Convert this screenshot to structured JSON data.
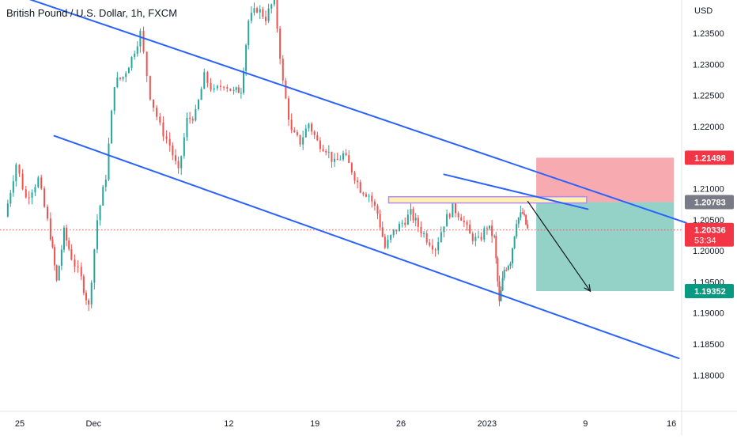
{
  "header": {
    "title": "British Pound / U.S. Dollar, 1h, FXCM",
    "currency": "USD"
  },
  "colors": {
    "trendline": "#2962ff",
    "candle_up": "#26a69a",
    "candle_down": "#ef5350",
    "stop_zone": "#f7a5ac",
    "target_zone": "#8ed0c4",
    "highlight_fill": "#fff2b0",
    "highlight_stroke": "#b388ff",
    "current_price_line": "#ef5350",
    "badge_stop": "#f23645",
    "badge_entry": "#787b86",
    "badge_current": "#f23645",
    "badge_target": "#089981"
  },
  "chart_data": {
    "type": "candlestick",
    "title": "British Pound / U.S. Dollar, 1h, FXCM",
    "y_unit": "USD",
    "ylim": [
      1.17725,
      1.24165
    ],
    "x_ticks": [
      {
        "label": "25",
        "day": 0
      },
      {
        "label": "Dec",
        "day": 6
      },
      {
        "label": "12",
        "day": 17
      },
      {
        "label": "19",
        "day": 24
      },
      {
        "label": "26",
        "day": 31
      },
      {
        "label": "2023",
        "day": 38
      },
      {
        "label": "9",
        "day": 46
      },
      {
        "label": "16",
        "day": 53
      }
    ],
    "xlim_days": [
      -1.2,
      56
    ],
    "y_ticks": [
      "1.18000",
      "1.18500",
      "1.19000",
      "1.19500",
      "1.20000",
      "1.20500",
      "1.21000",
      "1.21500",
      "1.22000",
      "1.22500",
      "1.23000",
      "1.23500"
    ],
    "price_path": [
      [
        -1.2,
        1.2055
      ],
      [
        -0.3,
        1.214
      ],
      [
        0.5,
        1.2085
      ],
      [
        1.5,
        1.2115
      ],
      [
        2.5,
        1.2025
      ],
      [
        3.0,
        1.195
      ],
      [
        3.6,
        1.203
      ],
      [
        4.2,
        1.199
      ],
      [
        5.0,
        1.1955
      ],
      [
        5.6,
        1.191
      ],
      [
        6.3,
        1.205
      ],
      [
        7.0,
        1.212
      ],
      [
        7.7,
        1.227
      ],
      [
        8.4,
        1.228
      ],
      [
        9.1,
        1.231
      ],
      [
        9.8,
        1.235
      ],
      [
        10.6,
        1.225
      ],
      [
        11.4,
        1.22
      ],
      [
        12.2,
        1.217
      ],
      [
        12.9,
        1.2125
      ],
      [
        13.6,
        1.221
      ],
      [
        14.3,
        1.222
      ],
      [
        15.0,
        1.228
      ],
      [
        15.8,
        1.2255
      ],
      [
        16.6,
        1.227
      ],
      [
        17.4,
        1.2255
      ],
      [
        18.0,
        1.226
      ],
      [
        18.6,
        1.237
      ],
      [
        19.3,
        1.239
      ],
      [
        20.0,
        1.2375
      ],
      [
        20.7,
        1.2405
      ],
      [
        21.4,
        1.227
      ],
      [
        22.1,
        1.219
      ],
      [
        22.8,
        1.2175
      ],
      [
        23.5,
        1.2205
      ],
      [
        24.2,
        1.2175
      ],
      [
        24.9,
        1.2165
      ],
      [
        25.6,
        1.214
      ],
      [
        26.3,
        1.2155
      ],
      [
        27.0,
        1.213
      ],
      [
        27.7,
        1.21
      ],
      [
        28.4,
        1.209
      ],
      [
        29.1,
        1.206
      ],
      [
        29.7,
        1.2005
      ],
      [
        30.4,
        1.203
      ],
      [
        31.1,
        1.2045
      ],
      [
        31.8,
        1.206
      ],
      [
        32.4,
        1.204
      ],
      [
        33.1,
        1.202
      ],
      [
        33.8,
        1.2005
      ],
      [
        34.5,
        1.2045
      ],
      [
        35.2,
        1.207
      ],
      [
        35.9,
        1.2055
      ],
      [
        36.6,
        1.2025
      ],
      [
        37.3,
        1.2015
      ],
      [
        38.0,
        1.204
      ],
      [
        38.6,
        1.202
      ],
      [
        39.0,
        1.1915
      ],
      [
        39.4,
        1.197
      ],
      [
        39.9,
        1.1985
      ],
      [
        40.4,
        1.205
      ],
      [
        40.9,
        1.206
      ],
      [
        41.3,
        1.2034
      ]
    ],
    "trendlines": [
      {
        "name": "channel-upper",
        "from": {
          "day": -1.2,
          "price": 1.2418
        },
        "to": {
          "day": 54.2,
          "price": 1.2045
        }
      },
      {
        "name": "channel-lower",
        "from": {
          "day": 2.8,
          "price": 1.2185
        },
        "to": {
          "day": 53.6,
          "price": 1.1827
        }
      },
      {
        "name": "inner-resistance",
        "from": {
          "day": 34.5,
          "price": 1.2123
        },
        "to": {
          "day": 46.2,
          "price": 1.2067
        }
      }
    ],
    "resistance_box": {
      "day_start": 30.0,
      "day_end": 46.1,
      "price_low": 1.2077,
      "price_high": 1.2087
    },
    "position": {
      "type": "short",
      "day_start": 42.0,
      "day_end": 53.2,
      "stop": 1.21498,
      "entry": 1.20783,
      "target": 1.19352
    },
    "projection_arrow": {
      "from": {
        "day": 41.3,
        "price": 1.208
      },
      "to": {
        "day": 46.4,
        "price": 1.1935
      }
    },
    "current_price": 1.20336,
    "price_badges": [
      {
        "label": "1.21498",
        "price": 1.21498,
        "kind": "stop"
      },
      {
        "label": "1.20783",
        "price": 1.20783,
        "kind": "entry"
      },
      {
        "label": "1.20336",
        "price": 1.20336,
        "kind": "current",
        "sublabel": "53:34"
      },
      {
        "label": "1.19352",
        "price": 1.19352,
        "kind": "target"
      }
    ]
  }
}
